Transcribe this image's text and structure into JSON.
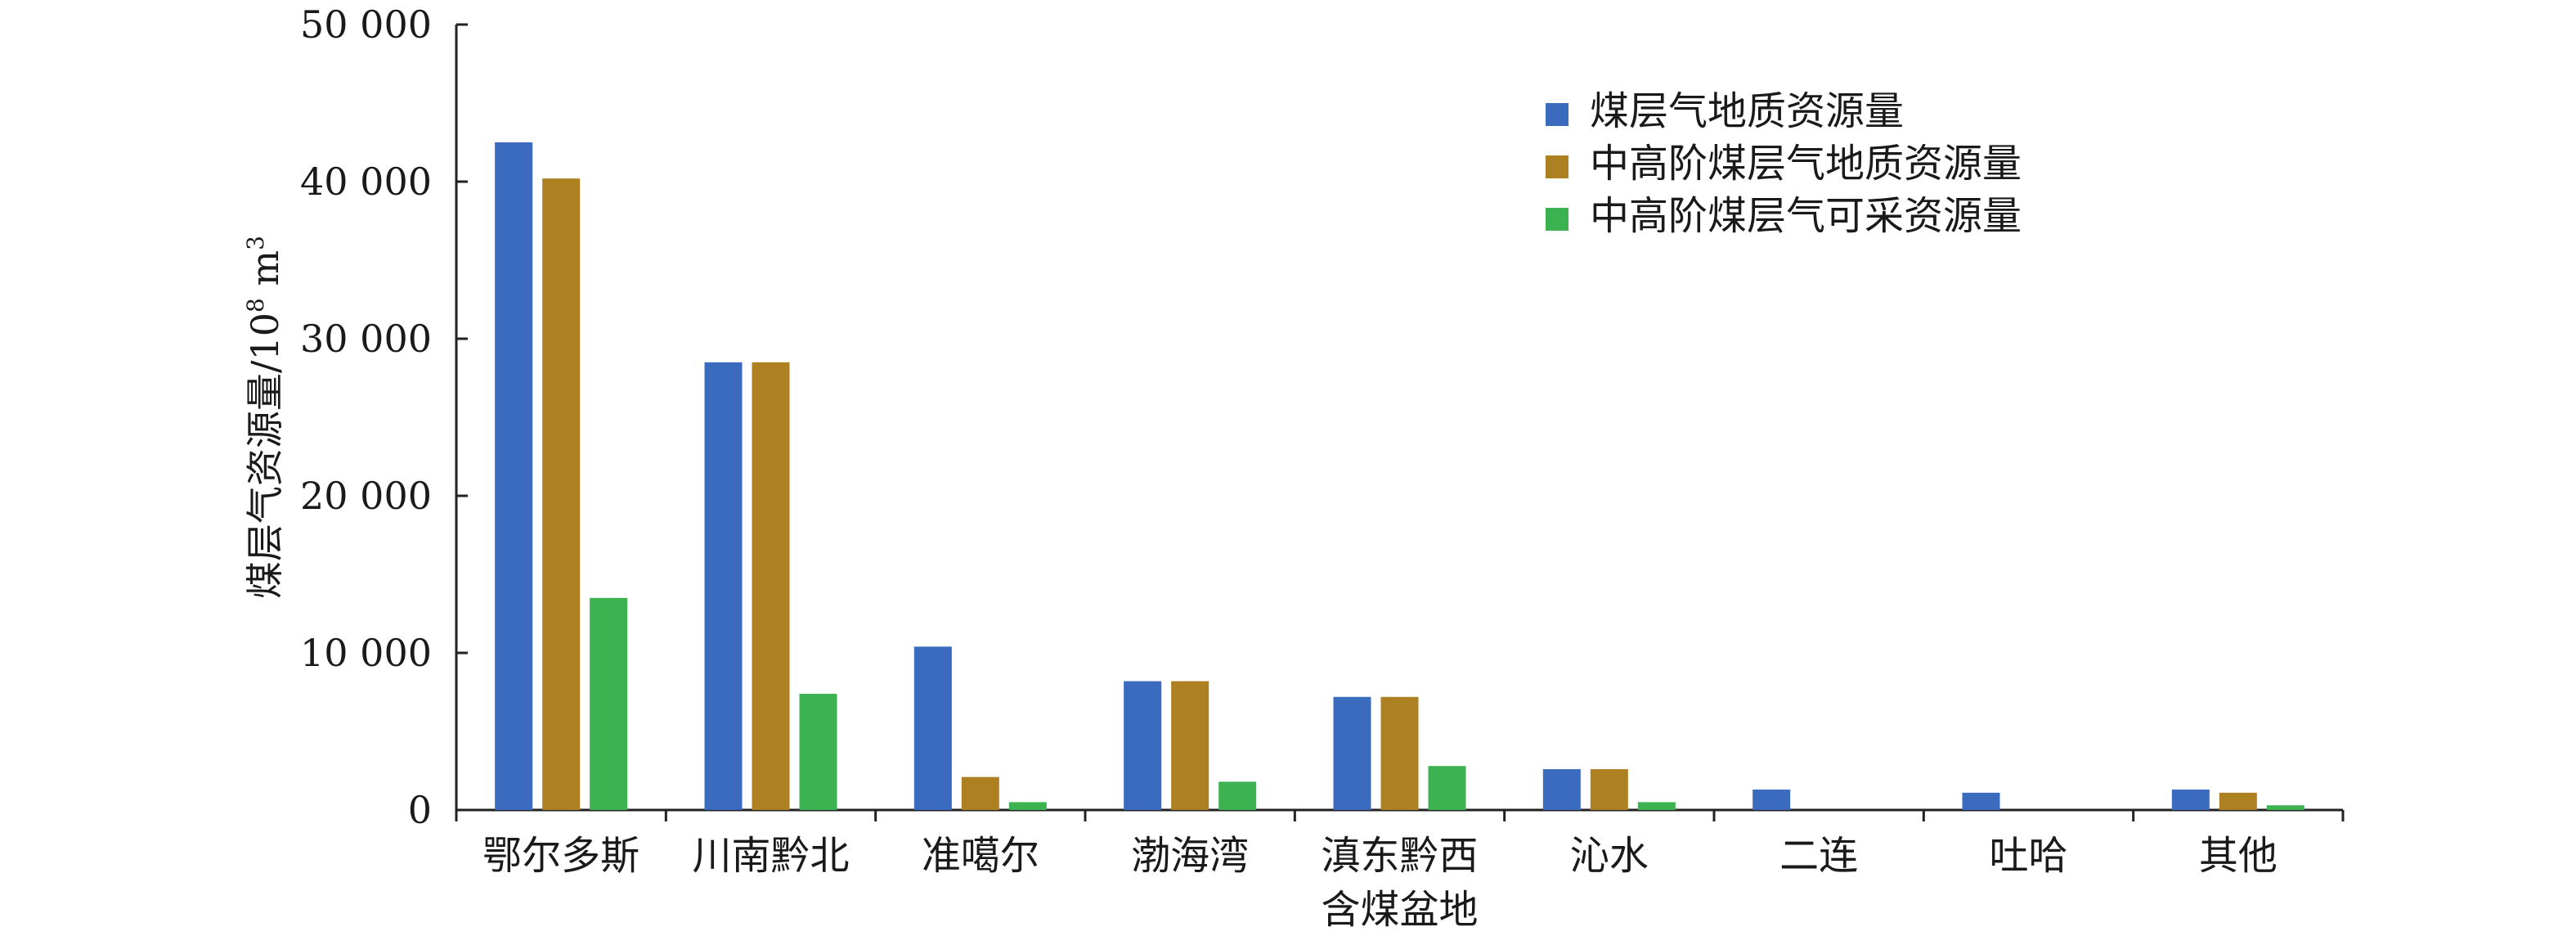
{
  "chart_data": {
    "type": "bar",
    "title": "",
    "xlabel": "",
    "ylabel": "煤层气资源量/10⁸ m³",
    "ylabel_main": "煤层气资源量/10",
    "ylabel_sup1": "8",
    "ylabel_unit": " m",
    "ylabel_sup2": "3",
    "ylim": [
      0,
      50000
    ],
    "yticks": [
      0,
      10000,
      20000,
      30000,
      40000,
      50000
    ],
    "ytick_labels": [
      "0",
      "10 000",
      "20 000",
      "30 000",
      "40 000",
      "50 000"
    ],
    "grid": false,
    "legend_position": "top-right",
    "categories": [
      "鄂尔多斯",
      "川南黔北",
      "准噶尔",
      "渤海湾",
      "滇东黔西含煤盆地",
      "沁水",
      "二连",
      "吐哈",
      "其他"
    ],
    "category_label_lines": [
      [
        "鄂尔多斯"
      ],
      [
        "川南黔北"
      ],
      [
        "准噶尔"
      ],
      [
        "渤海湾"
      ],
      [
        "滇东黔西",
        "含煤盆地"
      ],
      [
        "沁水"
      ],
      [
        "二连"
      ],
      [
        "吐哈"
      ],
      [
        "其他"
      ]
    ],
    "series": [
      {
        "name": "煤层气地质资源量",
        "color": "#3b6bbf",
        "values": [
          42500,
          28500,
          10400,
          8200,
          7200,
          2600,
          1300,
          1100,
          1300
        ]
      },
      {
        "name": "中高阶煤层气地质资源量",
        "color": "#ad8122",
        "values": [
          40200,
          28500,
          2100,
          8200,
          7200,
          2600,
          0,
          0,
          1100
        ]
      },
      {
        "name": "中高阶煤层气可采资源量",
        "color": "#3db250",
        "values": [
          13500,
          7400,
          500,
          1800,
          2800,
          500,
          0,
          0,
          300
        ]
      }
    ]
  }
}
